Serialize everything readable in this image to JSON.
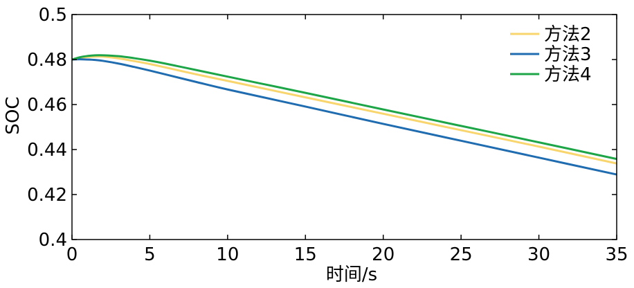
{
  "chart_data": {
    "type": "line",
    "xlabel": "时间/s",
    "ylabel": "SOC",
    "xlim": [
      0,
      35
    ],
    "ylim": [
      0.4,
      0.5
    ],
    "xticks": [
      0,
      5,
      10,
      15,
      20,
      25,
      30,
      35
    ],
    "xtick_labels": [
      "0",
      "5",
      "10",
      "15",
      "20",
      "25",
      "30",
      "35"
    ],
    "yticks": [
      0.4,
      0.42,
      0.44,
      0.46,
      0.48,
      0.5
    ],
    "ytick_labels": [
      "0.4",
      "0.42",
      "0.44",
      "0.46",
      "0.48",
      "0.5"
    ],
    "grid": false,
    "legend_position": "top-right",
    "series": [
      {
        "name": "方法2",
        "color": "#F9D56E",
        "x": [
          0,
          0.5,
          1,
          1.5,
          2,
          3,
          4,
          5,
          6,
          8,
          10,
          15,
          20,
          25,
          30,
          35
        ],
        "y": [
          0.48,
          0.4807,
          0.4811,
          0.4813,
          0.4813,
          0.4805,
          0.4793,
          0.478,
          0.4765,
          0.4734,
          0.4705,
          0.4632,
          0.4559,
          0.4486,
          0.4413,
          0.4338
        ]
      },
      {
        "name": "方法3",
        "color": "#1F6CB0",
        "x": [
          0,
          0.5,
          1,
          1.5,
          2,
          3,
          4,
          5,
          6,
          8,
          10,
          15,
          20,
          25,
          30,
          35
        ],
        "y": [
          0.48,
          0.4801,
          0.48,
          0.4798,
          0.4794,
          0.4782,
          0.4767,
          0.4751,
          0.4734,
          0.47,
          0.4667,
          0.4591,
          0.4514,
          0.4439,
          0.4364,
          0.4289
        ]
      },
      {
        "name": "方法4",
        "color": "#1DA547",
        "x": [
          0,
          0.5,
          1,
          1.5,
          2,
          3,
          4,
          5,
          6,
          8,
          10,
          15,
          20,
          25,
          30,
          35
        ],
        "y": [
          0.48,
          0.481,
          0.4816,
          0.4819,
          0.4819,
          0.4815,
          0.4806,
          0.4795,
          0.4782,
          0.4753,
          0.4724,
          0.4652,
          0.4578,
          0.4505,
          0.4432,
          0.4358
        ]
      }
    ]
  }
}
